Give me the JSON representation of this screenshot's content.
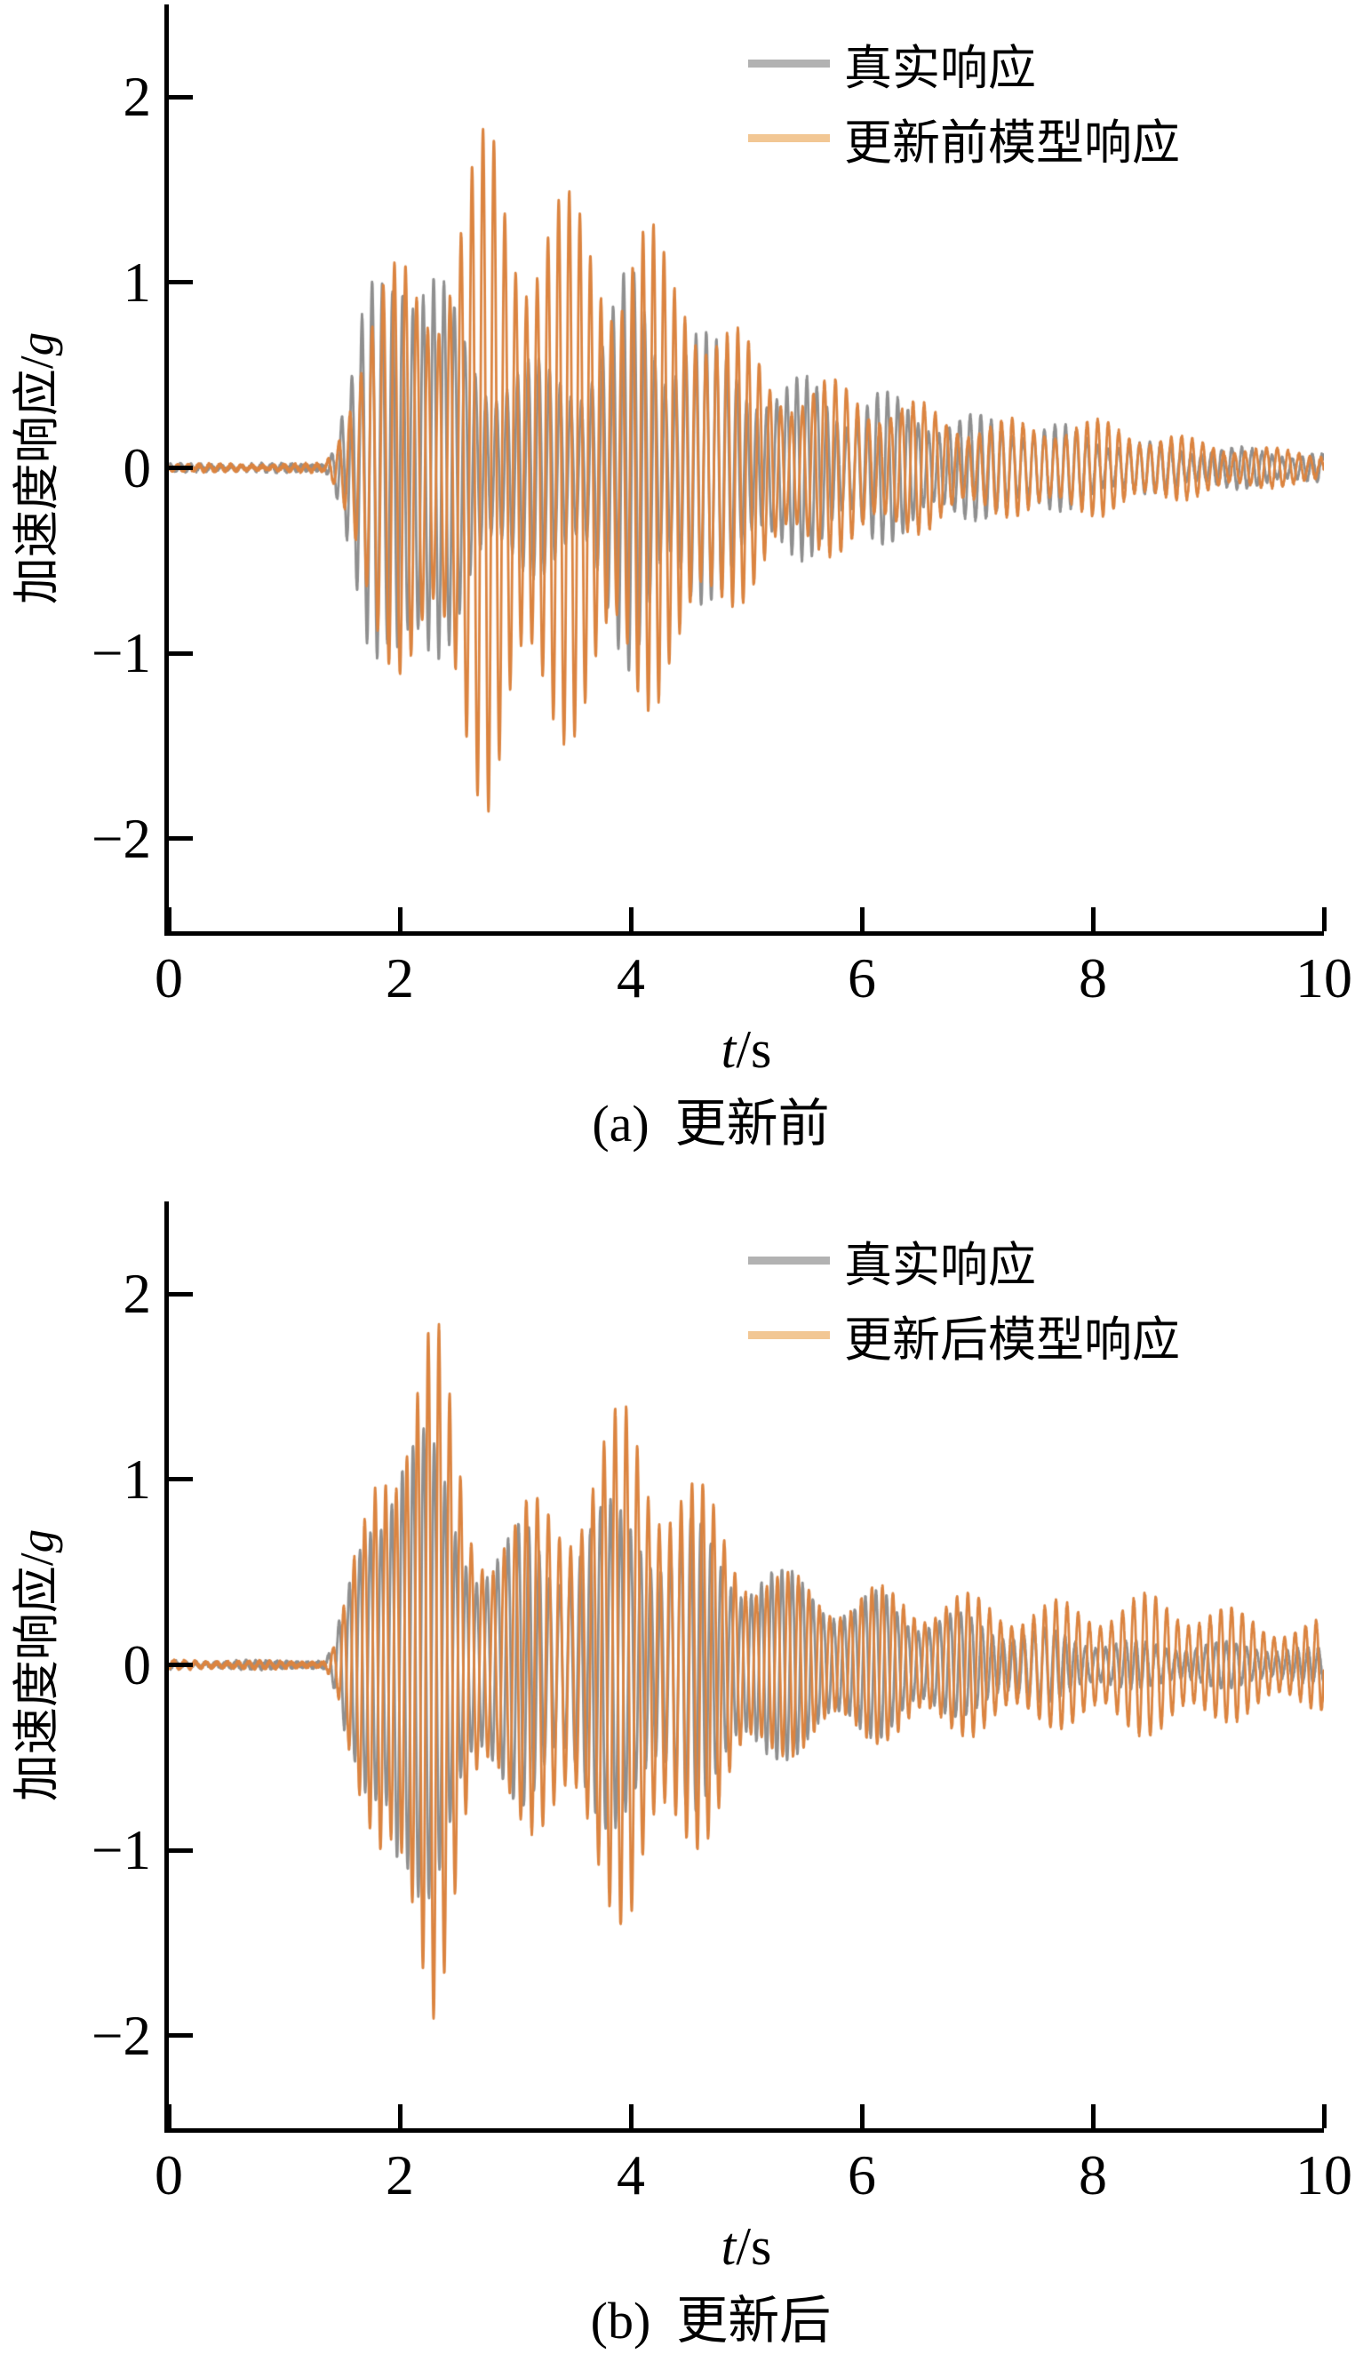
{
  "figure": {
    "background": "#ffffff",
    "axis_color": "#000000"
  },
  "chart_data": [
    {
      "type": "line",
      "caption": "(a)  更新前",
      "xlabel_var": "t",
      "xlabel_rest": "/s",
      "ylabel_main": "加速度响应/",
      "ylabel_unit": "g",
      "xlim": [
        0,
        10
      ],
      "ylim": [
        -2.5,
        2.5
      ],
      "grid": false,
      "xticks": [
        {
          "v": 0,
          "label": "0"
        },
        {
          "v": 2,
          "label": "2"
        },
        {
          "v": 4,
          "label": "4"
        },
        {
          "v": 6,
          "label": "6"
        },
        {
          "v": 8,
          "label": "8"
        },
        {
          "v": 10,
          "label": "10"
        }
      ],
      "yticks": [
        {
          "v": 2,
          "label": "2"
        },
        {
          "v": 1,
          "label": "1"
        },
        {
          "v": 0,
          "label": "0"
        },
        {
          "v": -1,
          "label": "−1"
        },
        {
          "v": -2,
          "label": "−2"
        }
      ],
      "legend": {
        "position": "top-right",
        "entries": [
          {
            "label": "真实响应",
            "color": "#b2b2b2"
          },
          {
            "label": "更新前模型响应",
            "color": "#f2c794"
          }
        ]
      },
      "series": [
        {
          "name": "真实响应",
          "color": "#8f8f8f",
          "carrier_hz": 11.2,
          "envelope": [
            [
              0,
              0.02
            ],
            [
              1.35,
              0.02
            ],
            [
              1.42,
              0.12
            ],
            [
              1.5,
              0.35
            ],
            [
              1.6,
              0.6
            ],
            [
              1.7,
              1.05
            ],
            [
              1.8,
              1.4
            ],
            [
              1.9,
              1.65
            ],
            [
              2.0,
              2.15
            ],
            [
              2.05,
              1.95
            ],
            [
              2.15,
              1.65
            ],
            [
              2.3,
              1.4
            ],
            [
              2.45,
              1.1
            ],
            [
              2.6,
              0.85
            ],
            [
              2.8,
              0.68
            ],
            [
              3.0,
              0.62
            ],
            [
              3.3,
              0.58
            ],
            [
              3.6,
              0.68
            ],
            [
              3.8,
              0.98
            ],
            [
              4.0,
              1.35
            ],
            [
              4.15,
              1.25
            ],
            [
              4.3,
              0.98
            ],
            [
              4.5,
              1.08
            ],
            [
              4.7,
              0.82
            ],
            [
              5.0,
              0.62
            ],
            [
              5.3,
              0.47
            ],
            [
              5.6,
              0.52
            ],
            [
              5.9,
              0.4
            ],
            [
              6.1,
              0.52
            ],
            [
              6.4,
              0.47
            ],
            [
              6.7,
              0.37
            ],
            [
              7.0,
              0.31
            ],
            [
              7.5,
              0.26
            ],
            [
              8.0,
              0.21
            ],
            [
              8.5,
              0.17
            ],
            [
              9.0,
              0.13
            ],
            [
              9.5,
              0.1
            ],
            [
              10,
              0.08
            ]
          ]
        },
        {
          "name": "更新前模型响应",
          "color": "#db8440",
          "carrier_hz": 10.7,
          "envelope": [
            [
              0,
              0.02
            ],
            [
              1.35,
              0.02
            ],
            [
              1.45,
              0.16
            ],
            [
              1.55,
              0.48
            ],
            [
              1.7,
              0.88
            ],
            [
              1.9,
              1.08
            ],
            [
              2.1,
              1.28
            ],
            [
              2.3,
              1.4
            ],
            [
              2.5,
              1.8
            ],
            [
              2.65,
              2.15
            ],
            [
              2.8,
              2.45
            ],
            [
              2.95,
              2.2
            ],
            [
              3.1,
              1.95
            ],
            [
              3.3,
              1.75
            ],
            [
              3.5,
              1.55
            ],
            [
              3.7,
              1.45
            ],
            [
              3.9,
              1.38
            ],
            [
              4.05,
              1.5
            ],
            [
              4.2,
              1.38
            ],
            [
              4.35,
              1.22
            ],
            [
              4.5,
              1.35
            ],
            [
              4.7,
              1.25
            ],
            [
              4.85,
              1.05
            ],
            [
              5.0,
              0.88
            ],
            [
              5.2,
              0.68
            ],
            [
              5.4,
              0.58
            ],
            [
              5.6,
              0.52
            ],
            [
              5.9,
              0.46
            ],
            [
              6.2,
              0.42
            ],
            [
              6.6,
              0.38
            ],
            [
              7.0,
              0.34
            ],
            [
              7.4,
              0.31
            ],
            [
              7.8,
              0.28
            ],
            [
              8.2,
              0.25
            ],
            [
              8.6,
              0.21
            ],
            [
              9.0,
              0.18
            ],
            [
              9.4,
              0.14
            ],
            [
              9.7,
              0.11
            ],
            [
              10,
              0.09
            ]
          ]
        }
      ]
    },
    {
      "type": "line",
      "caption": "(b)  更新后",
      "xlabel_var": "t",
      "xlabel_rest": "/s",
      "ylabel_main": "加速度响应/",
      "ylabel_unit": "g",
      "xlim": [
        0,
        10
      ],
      "ylim": [
        -2.5,
        2.5
      ],
      "grid": false,
      "xticks": [
        {
          "v": 0,
          "label": "0"
        },
        {
          "v": 2,
          "label": "2"
        },
        {
          "v": 4,
          "label": "4"
        },
        {
          "v": 6,
          "label": "6"
        },
        {
          "v": 8,
          "label": "8"
        },
        {
          "v": 10,
          "label": "10"
        }
      ],
      "yticks": [
        {
          "v": 2,
          "label": "2"
        },
        {
          "v": 1,
          "label": "1"
        },
        {
          "v": 0,
          "label": "0"
        },
        {
          "v": -1,
          "label": "−1"
        },
        {
          "v": -2,
          "label": "−2"
        }
      ],
      "legend": {
        "position": "top-right",
        "entries": [
          {
            "label": "真实响应",
            "color": "#b2b2b2"
          },
          {
            "label": "更新后模型响应",
            "color": "#f2c794"
          }
        ]
      },
      "series": [
        {
          "name": "真实响应",
          "color": "#8f8f8f",
          "carrier_hz": 11.2,
          "envelope": [
            [
              0,
              0.02
            ],
            [
              1.35,
              0.02
            ],
            [
              1.42,
              0.12
            ],
            [
              1.5,
              0.35
            ],
            [
              1.6,
              0.62
            ],
            [
              1.7,
              1.05
            ],
            [
              1.8,
              1.45
            ],
            [
              1.9,
              1.7
            ],
            [
              1.97,
              2.15
            ],
            [
              2.05,
              1.85
            ],
            [
              2.2,
              1.6
            ],
            [
              2.35,
              1.3
            ],
            [
              2.5,
              1.0
            ],
            [
              2.7,
              0.78
            ],
            [
              2.9,
              0.72
            ],
            [
              3.1,
              0.78
            ],
            [
              3.3,
              0.72
            ],
            [
              3.5,
              0.92
            ],
            [
              3.7,
              1.02
            ],
            [
              3.9,
              1.12
            ],
            [
              4.1,
              1.22
            ],
            [
              4.3,
              0.98
            ],
            [
              4.5,
              0.92
            ],
            [
              4.7,
              0.78
            ],
            [
              5.0,
              0.62
            ],
            [
              5.3,
              0.52
            ],
            [
              5.6,
              0.56
            ],
            [
              5.9,
              0.42
            ],
            [
              6.2,
              0.52
            ],
            [
              6.5,
              0.37
            ],
            [
              7.0,
              0.26
            ],
            [
              7.5,
              0.21
            ],
            [
              8.0,
              0.18
            ],
            [
              8.5,
              0.15
            ],
            [
              9.0,
              0.13
            ],
            [
              9.5,
              0.11
            ],
            [
              10,
              0.1
            ]
          ]
        },
        {
          "name": "更新后模型响应",
          "color": "#db8440",
          "carrier_hz": 10.7,
          "envelope": [
            [
              0,
              0.02
            ],
            [
              1.35,
              0.02
            ],
            [
              1.45,
              0.18
            ],
            [
              1.55,
              0.5
            ],
            [
              1.7,
              0.98
            ],
            [
              1.85,
              1.65
            ],
            [
              2.0,
              1.78
            ],
            [
              2.15,
              1.9
            ],
            [
              2.3,
              1.95
            ],
            [
              2.45,
              1.5
            ],
            [
              2.6,
              1.08
            ],
            [
              2.8,
              0.92
            ],
            [
              3.0,
              0.98
            ],
            [
              3.2,
              1.18
            ],
            [
              3.4,
              1.35
            ],
            [
              3.6,
              1.45
            ],
            [
              3.8,
              1.5
            ],
            [
              4.0,
              1.6
            ],
            [
              4.2,
              1.4
            ],
            [
              4.4,
              1.18
            ],
            [
              4.6,
              1.02
            ],
            [
              4.8,
              0.88
            ],
            [
              5.0,
              0.78
            ],
            [
              5.3,
              0.64
            ],
            [
              5.6,
              0.56
            ],
            [
              5.9,
              0.5
            ],
            [
              6.2,
              0.44
            ],
            [
              6.5,
              0.4
            ],
            [
              6.9,
              0.41
            ],
            [
              7.3,
              0.43
            ],
            [
              7.7,
              0.43
            ],
            [
              8.1,
              0.41
            ],
            [
              8.5,
              0.39
            ],
            [
              9.0,
              0.36
            ],
            [
              9.5,
              0.32
            ],
            [
              10,
              0.29
            ]
          ]
        }
      ]
    }
  ]
}
